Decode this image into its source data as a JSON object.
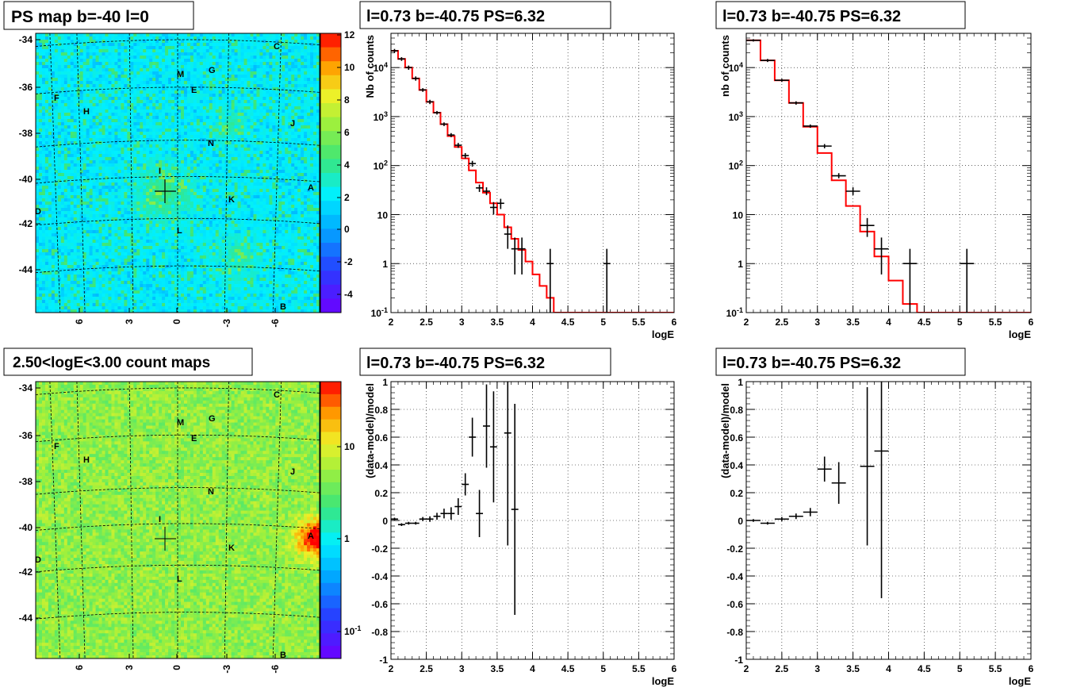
{
  "colors": {
    "data": "#000000",
    "model": "#ff0000",
    "grid": "#000000"
  },
  "maps": [
    {
      "title": "PS map b=-40 l=0",
      "palette": "rainbow",
      "y_ticks": [
        "-34",
        "-36",
        "-38",
        "-40",
        "-42",
        "-44"
      ],
      "x_ticks": [
        "6",
        "3",
        "0",
        "-3",
        "-6"
      ],
      "colorbar_ticks": [
        "12",
        "10",
        "8",
        "6",
        "4",
        "2",
        "0",
        "-2",
        "-4"
      ],
      "sources": [
        "C",
        "M",
        "G",
        "E",
        "F",
        "H",
        "J",
        "N",
        "I",
        "A",
        "D",
        "K",
        "L",
        "B"
      ],
      "hotspot": null
    },
    {
      "title": "2.50<logE<3.00 count maps",
      "palette": "log",
      "y_ticks": [
        "-34",
        "-36",
        "-38",
        "-40",
        "-42",
        "-44"
      ],
      "x_ticks": [
        "6",
        "3",
        "0",
        "-3",
        "-6"
      ],
      "colorbar_ticks": [
        "10",
        "1",
        "10-1"
      ],
      "sources": [
        "C",
        "M",
        "G",
        "E",
        "F",
        "H",
        "J",
        "N",
        "I",
        "A",
        "D",
        "K",
        "L",
        "B"
      ],
      "hotspot": "A"
    }
  ],
  "chart_data": [
    {
      "type": "line",
      "title": "l=0.73 b=-40.75 PS=6.32",
      "xlabel": "logE",
      "ylabel": "Nb of counts",
      "xlim": [
        2,
        6
      ],
      "ylim": [
        0.1,
        50000
      ],
      "yscale": "log",
      "grid": true,
      "x_ticks": [
        "2",
        "2.5",
        "3",
        "3.5",
        "4",
        "4.5",
        "5",
        "5.5",
        "6"
      ],
      "y_ticks": [
        "10-1",
        "1",
        "10",
        "102",
        "103",
        "104"
      ],
      "model_step": {
        "edges": [
          2.0,
          2.1,
          2.2,
          2.3,
          2.4,
          2.5,
          2.6,
          2.7,
          2.8,
          2.9,
          3.0,
          3.1,
          3.2,
          3.3,
          3.4,
          3.5,
          3.6,
          3.7,
          3.8,
          3.9,
          4.0,
          4.1,
          4.2,
          4.3,
          6.0
        ],
        "values": [
          22000,
          15000,
          10000,
          6000,
          3500,
          2000,
          1200,
          700,
          400,
          240,
          140,
          80,
          45,
          28,
          17,
          10,
          5.5,
          3.2,
          1.9,
          1.1,
          0.6,
          0.35,
          0.2,
          0.1
        ]
      },
      "points": [
        {
          "x": 2.05,
          "y": 22000,
          "ylo": 20000,
          "yhi": 24000
        },
        {
          "x": 2.15,
          "y": 15000,
          "ylo": 13700,
          "yhi": 16300
        },
        {
          "x": 2.25,
          "y": 10000,
          "ylo": 9000,
          "yhi": 11000
        },
        {
          "x": 2.35,
          "y": 6000,
          "ylo": 5400,
          "yhi": 6600
        },
        {
          "x": 2.45,
          "y": 3500,
          "ylo": 3200,
          "yhi": 3800
        },
        {
          "x": 2.55,
          "y": 2000,
          "ylo": 1800,
          "yhi": 2200
        },
        {
          "x": 2.65,
          "y": 1200,
          "ylo": 1100,
          "yhi": 1300
        },
        {
          "x": 2.75,
          "y": 700,
          "ylo": 640,
          "yhi": 760
        },
        {
          "x": 2.85,
          "y": 420,
          "ylo": 380,
          "yhi": 460
        },
        {
          "x": 2.95,
          "y": 260,
          "ylo": 230,
          "yhi": 290
        },
        {
          "x": 3.05,
          "y": 160,
          "ylo": 140,
          "yhi": 180
        },
        {
          "x": 3.15,
          "y": 110,
          "ylo": 95,
          "yhi": 125
        },
        {
          "x": 3.25,
          "y": 35,
          "ylo": 29,
          "yhi": 41
        },
        {
          "x": 3.35,
          "y": 30,
          "ylo": 25,
          "yhi": 36
        },
        {
          "x": 3.45,
          "y": 14,
          "ylo": 10,
          "yhi": 18
        },
        {
          "x": 3.55,
          "y": 17,
          "ylo": 13,
          "yhi": 21
        },
        {
          "x": 3.65,
          "y": 4,
          "ylo": 2,
          "yhi": 6
        },
        {
          "x": 3.75,
          "y": 2,
          "ylo": 0.6,
          "yhi": 3.4
        },
        {
          "x": 3.85,
          "y": 2,
          "ylo": 0.6,
          "yhi": 3.4
        },
        {
          "x": 4.25,
          "y": 1,
          "ylo": 0.1,
          "yhi": 2
        },
        {
          "x": 5.05,
          "y": 1,
          "ylo": 0.1,
          "yhi": 2
        }
      ],
      "xerr": 0.05
    },
    {
      "type": "line",
      "title": "l=0.73 b=-40.75 PS=6.32",
      "xlabel": "logE",
      "ylabel": "nb of counts",
      "xlim": [
        2,
        6
      ],
      "ylim": [
        0.1,
        50000
      ],
      "yscale": "log",
      "grid": true,
      "x_ticks": [
        "2",
        "2.5",
        "3",
        "3.5",
        "4",
        "4.5",
        "5",
        "5.5",
        "6"
      ],
      "y_ticks": [
        "10-1",
        "1",
        "10",
        "102",
        "103",
        "104"
      ],
      "model_step": {
        "edges": [
          2.0,
          2.2,
          2.4,
          2.6,
          2.8,
          3.0,
          3.2,
          3.4,
          3.6,
          3.8,
          4.0,
          4.2,
          4.4,
          6.0
        ],
        "values": [
          36000,
          14000,
          5500,
          1900,
          620,
          180,
          50,
          15,
          4.5,
          1.4,
          0.45,
          0.15,
          0.1
        ]
      },
      "points": [
        {
          "x": 2.1,
          "y": 36000,
          "ylo": 34000,
          "yhi": 38000
        },
        {
          "x": 2.3,
          "y": 14000,
          "ylo": 13000,
          "yhi": 15000
        },
        {
          "x": 2.5,
          "y": 5500,
          "ylo": 5100,
          "yhi": 5900
        },
        {
          "x": 2.7,
          "y": 1900,
          "ylo": 1750,
          "yhi": 2050
        },
        {
          "x": 2.9,
          "y": 640,
          "ylo": 590,
          "yhi": 690
        },
        {
          "x": 3.1,
          "y": 250,
          "ylo": 225,
          "yhi": 275
        },
        {
          "x": 3.3,
          "y": 62,
          "ylo": 55,
          "yhi": 70
        },
        {
          "x": 3.5,
          "y": 30,
          "ylo": 25,
          "yhi": 36
        },
        {
          "x": 3.7,
          "y": 6,
          "ylo": 3.5,
          "yhi": 8.5
        },
        {
          "x": 3.9,
          "y": 2,
          "ylo": 0.6,
          "yhi": 3.4
        },
        {
          "x": 4.3,
          "y": 1,
          "ylo": 0.1,
          "yhi": 2
        },
        {
          "x": 5.1,
          "y": 1,
          "ylo": 0.1,
          "yhi": 2
        }
      ],
      "xerr": 0.1
    },
    {
      "type": "scatter",
      "title": "l=0.73 b=-40.75 PS=6.32",
      "xlabel": "logE",
      "ylabel": "(data-model)/model",
      "xlim": [
        2,
        6
      ],
      "ylim": [
        -1,
        1
      ],
      "grid": true,
      "x_ticks": [
        "2",
        "2.5",
        "3",
        "3.5",
        "4",
        "4.5",
        "5",
        "5.5",
        "6"
      ],
      "y_ticks": [
        "-1",
        "-0.8",
        "-0.6",
        "-0.4",
        "-0.2",
        "0",
        "0.2",
        "0.4",
        "0.6",
        "0.8",
        "1"
      ],
      "points": [
        {
          "x": 2.05,
          "y": 0.01,
          "err": 0.01
        },
        {
          "x": 2.15,
          "y": -0.03,
          "err": 0.01
        },
        {
          "x": 2.25,
          "y": -0.02,
          "err": 0.01
        },
        {
          "x": 2.35,
          "y": -0.02,
          "err": 0.01
        },
        {
          "x": 2.45,
          "y": 0.01,
          "err": 0.015
        },
        {
          "x": 2.55,
          "y": 0.01,
          "err": 0.02
        },
        {
          "x": 2.65,
          "y": 0.03,
          "err": 0.025
        },
        {
          "x": 2.75,
          "y": 0.05,
          "err": 0.035
        },
        {
          "x": 2.85,
          "y": 0.05,
          "err": 0.045
        },
        {
          "x": 2.95,
          "y": 0.1,
          "err": 0.06
        },
        {
          "x": 3.05,
          "y": 0.26,
          "err": 0.08
        },
        {
          "x": 3.15,
          "y": 0.6,
          "err": 0.14
        },
        {
          "x": 3.25,
          "y": 0.05,
          "err": 0.17
        },
        {
          "x": 3.35,
          "y": 0.68,
          "err": 0.3
        },
        {
          "x": 3.45,
          "y": 0.53,
          "err": 0.4
        },
        {
          "x": 3.65,
          "y": 0.63,
          "err": 0.81
        },
        {
          "x": 3.75,
          "y": 0.08,
          "err": 0.76
        }
      ],
      "xerr": 0.05
    },
    {
      "type": "scatter",
      "title": "l=0.73 b=-40.75 PS=6.32",
      "xlabel": "logE",
      "ylabel": "(data-model)/model",
      "xlim": [
        2,
        6
      ],
      "ylim": [
        -1,
        1
      ],
      "grid": true,
      "x_ticks": [
        "2",
        "2.5",
        "3",
        "3.5",
        "4",
        "4.5",
        "5",
        "5.5",
        "6"
      ],
      "y_ticks": [
        "-1",
        "-0.8",
        "-0.6",
        "-0.4",
        "-0.2",
        "0",
        "0.2",
        "0.4",
        "0.6",
        "0.8",
        "1"
      ],
      "points": [
        {
          "x": 2.1,
          "y": 0.0,
          "err": 0.01
        },
        {
          "x": 2.3,
          "y": -0.02,
          "err": 0.01
        },
        {
          "x": 2.5,
          "y": 0.01,
          "err": 0.015
        },
        {
          "x": 2.7,
          "y": 0.03,
          "err": 0.02
        },
        {
          "x": 2.9,
          "y": 0.06,
          "err": 0.03
        },
        {
          "x": 3.1,
          "y": 0.37,
          "err": 0.09
        },
        {
          "x": 3.3,
          "y": 0.27,
          "err": 0.15
        },
        {
          "x": 3.7,
          "y": 0.39,
          "err": 0.57
        },
        {
          "x": 3.9,
          "y": 0.5,
          "err": 1.06
        }
      ],
      "xerr": 0.1
    }
  ]
}
